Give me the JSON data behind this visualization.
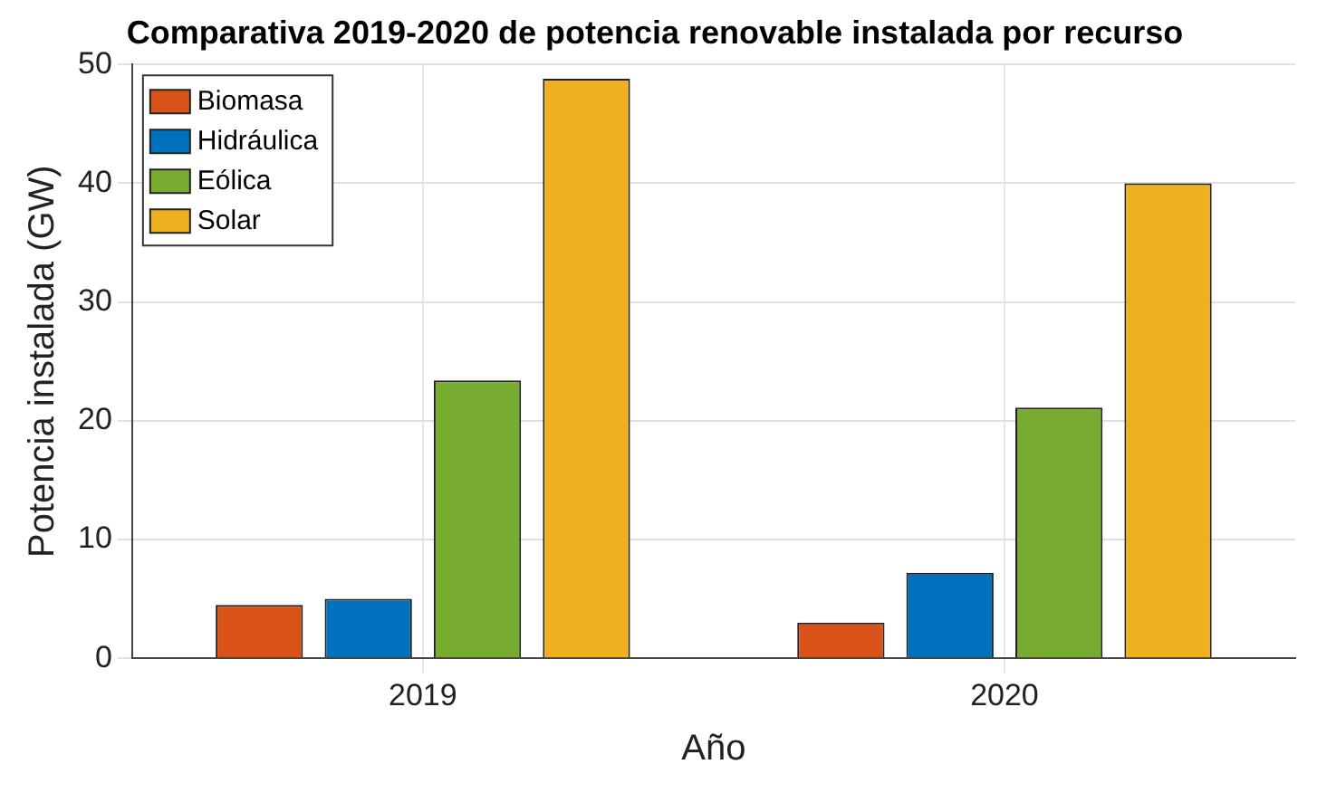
{
  "chart_data": {
    "type": "bar",
    "title": "Comparativa 2019-2020 de potencia renovable instalada por recurso",
    "xlabel": "Año",
    "ylabel": "Potencia instalada (GW)",
    "categories": [
      "2019",
      "2020"
    ],
    "series": [
      {
        "name": "Biomasa",
        "color": "#d95319",
        "values": [
          4.5,
          3.0
        ]
      },
      {
        "name": "Hidráulica",
        "color": "#0072bd",
        "values": [
          5.0,
          7.2
        ]
      },
      {
        "name": "Eólica",
        "color": "#77ac30",
        "values": [
          23.4,
          21.1
        ]
      },
      {
        "name": "Solar",
        "color": "#edb120",
        "values": [
          48.8,
          40.0
        ]
      }
    ],
    "ylim": [
      0,
      50
    ],
    "yticks": [
      0,
      10,
      20,
      30,
      40,
      50
    ],
    "grid": true,
    "legend": "top left"
  }
}
